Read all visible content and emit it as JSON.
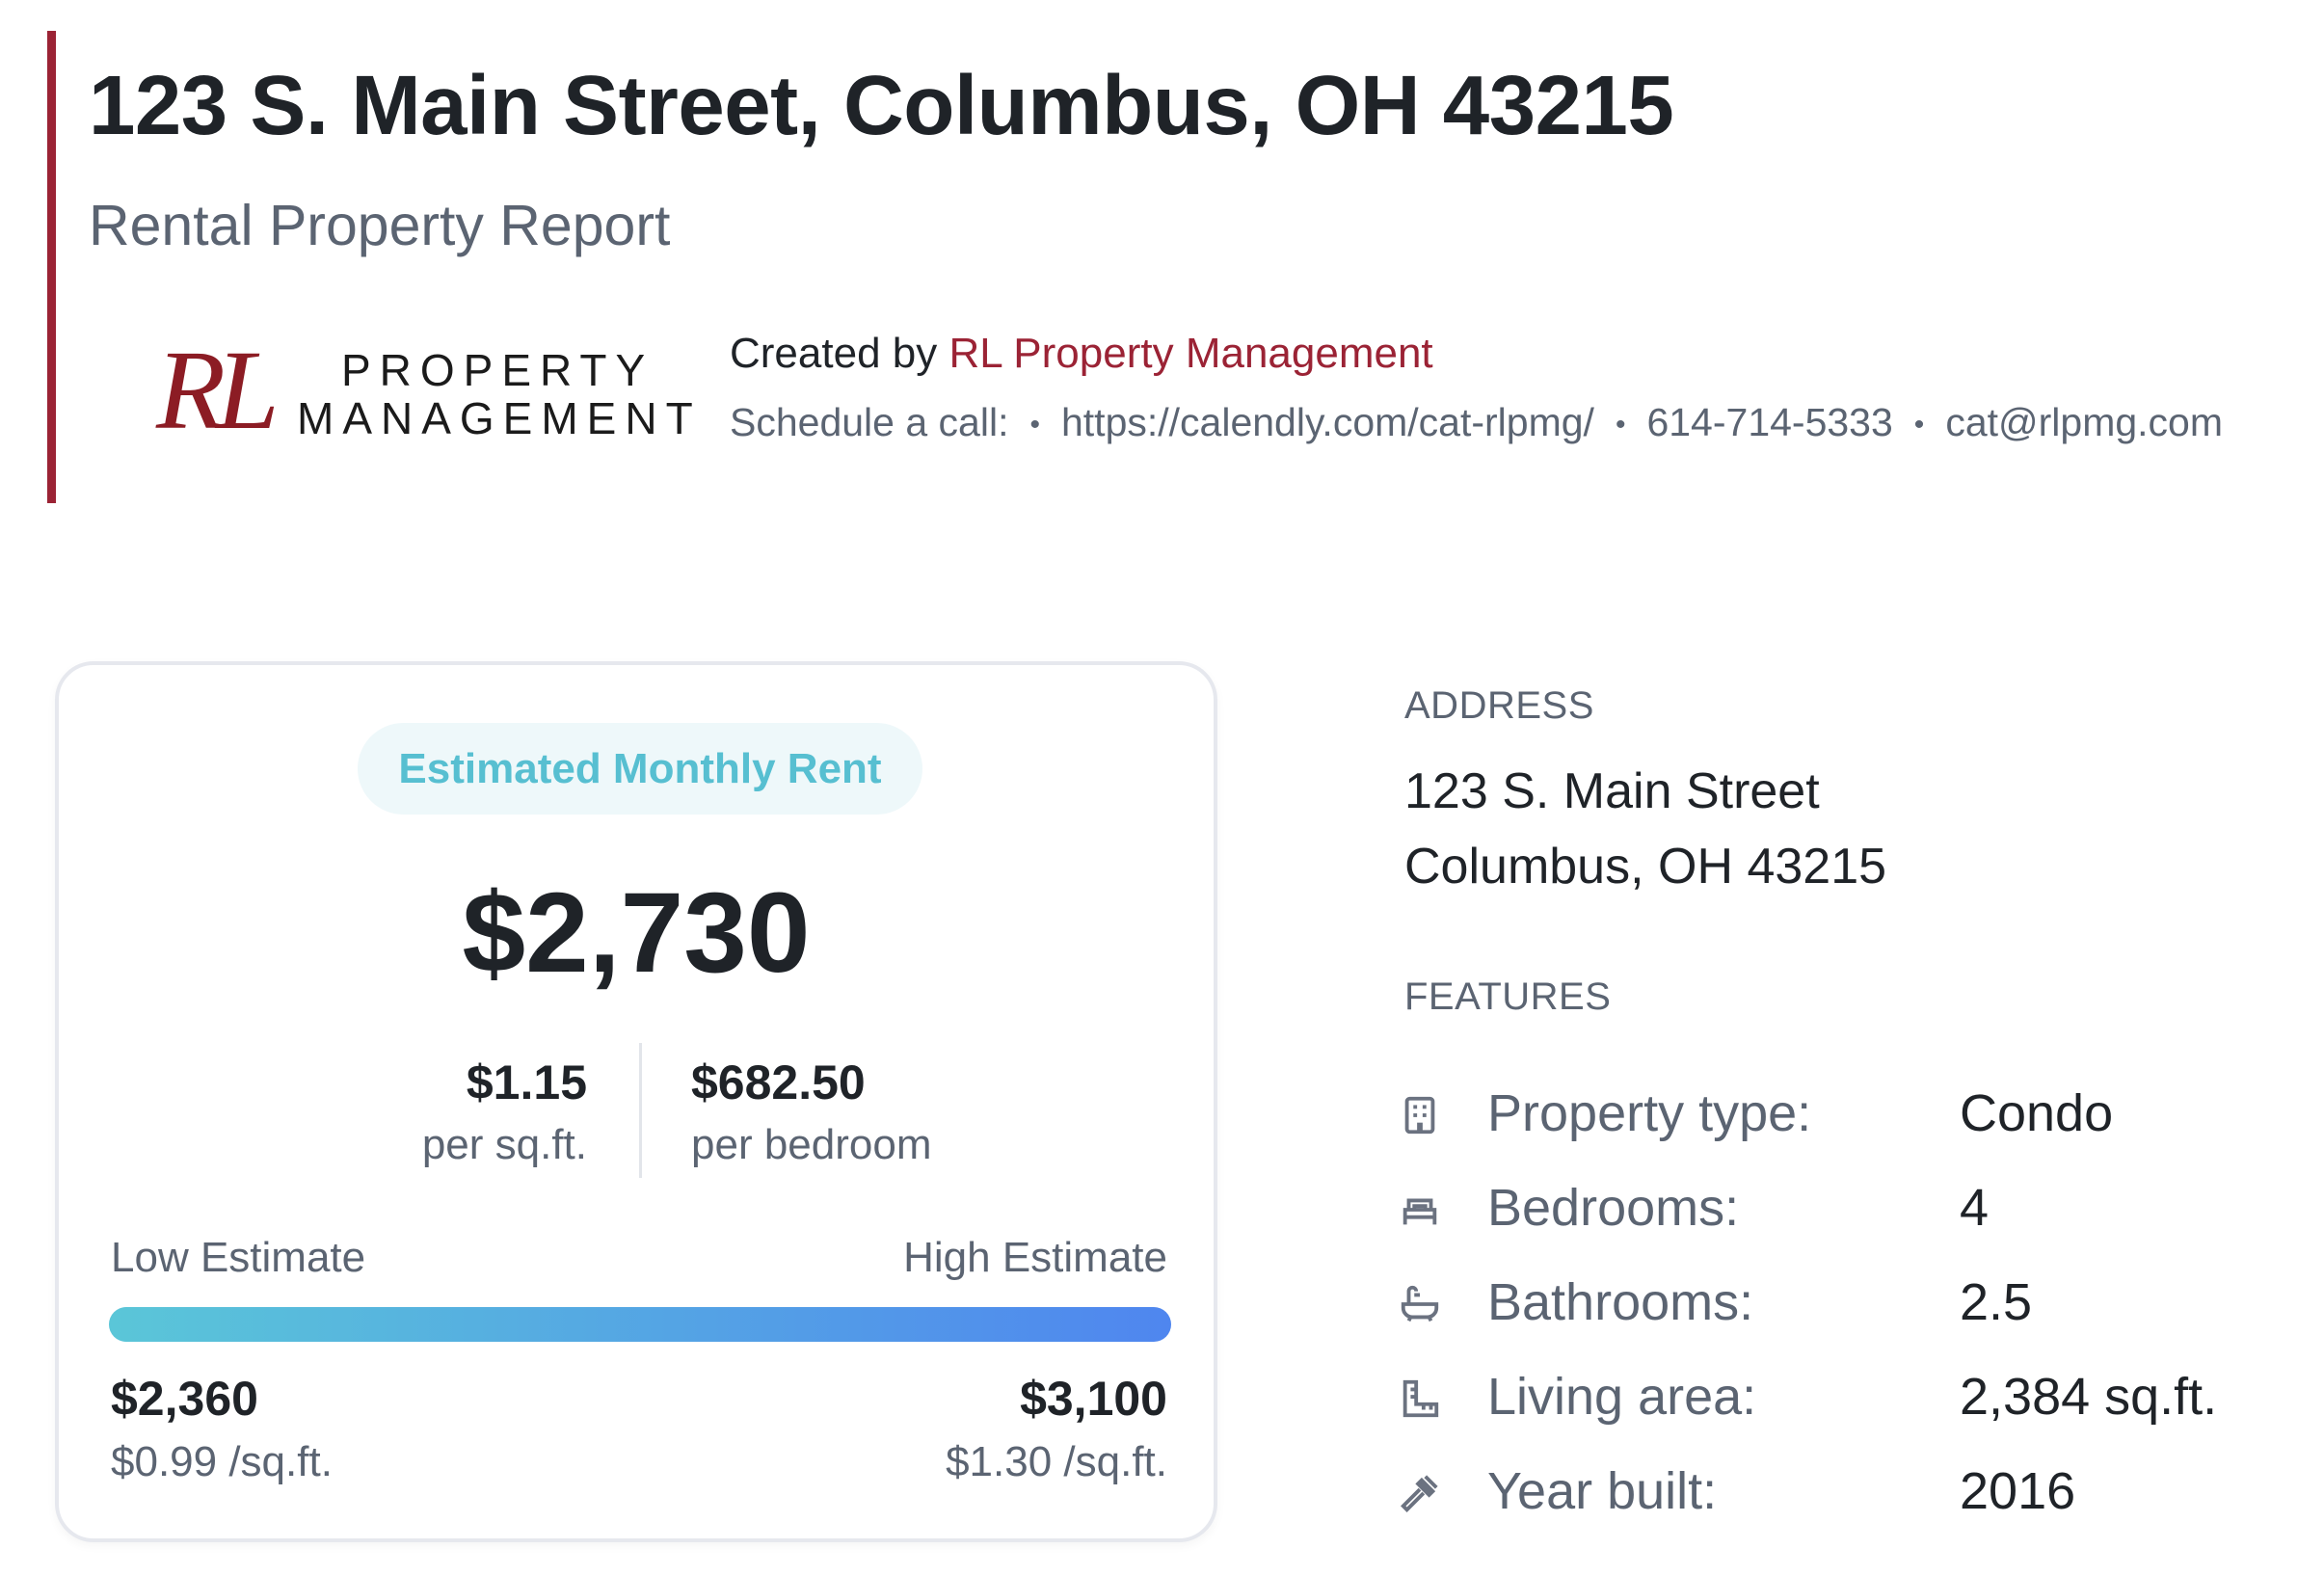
{
  "header": {
    "title": "123 S. Main Street, Columbus, OH 43215",
    "subtitle": "Rental Property Report",
    "accent_color": "#9b2335"
  },
  "logo": {
    "mark": "RL",
    "word1": "PROPERTY",
    "word2": "MANAGEMENT"
  },
  "creator": {
    "prefix": "Created by",
    "name": "RL Property Management",
    "schedule_label": "Schedule a call:",
    "calendly": "https://calendly.com/cat-rlpmg/",
    "phone": "614-714-5333",
    "email": "cat@rlpmg.com"
  },
  "estimate": {
    "pill_label": "Estimated Monthly Rent",
    "rent": "$2,730",
    "per_sqft_value": "$1.15",
    "per_sqft_label": "per sq.ft.",
    "per_bedroom_value": "$682.50",
    "per_bedroom_label": "per bedroom",
    "low_label": "Low Estimate",
    "high_label": "High Estimate",
    "low_value": "$2,360",
    "low_per_sqft": "$0.99 /sq.ft.",
    "high_value": "$3,100",
    "high_per_sqft": "$1.30 /sq.ft.",
    "range_fill_fraction": 1.0,
    "pill_text_color": "#57bfd1",
    "gradient_start": "#5ac6d8",
    "gradient_end": "#4f86ef"
  },
  "address": {
    "label": "ADDRESS",
    "line1": "123 S. Main Street",
    "line2": "Columbus, OH 43215"
  },
  "features": {
    "label": "FEATURES",
    "items": [
      {
        "icon": "building-icon",
        "label": "Property type:",
        "value": "Condo"
      },
      {
        "icon": "bed-icon",
        "label": "Bedrooms:",
        "value": "4"
      },
      {
        "icon": "bathtub-icon",
        "label": "Bathrooms:",
        "value": "2.5"
      },
      {
        "icon": "ruler-area-icon",
        "label": "Living area:",
        "value": "2,384 sq.ft."
      },
      {
        "icon": "hammer-icon",
        "label": "Year built:",
        "value": "2016"
      }
    ]
  }
}
